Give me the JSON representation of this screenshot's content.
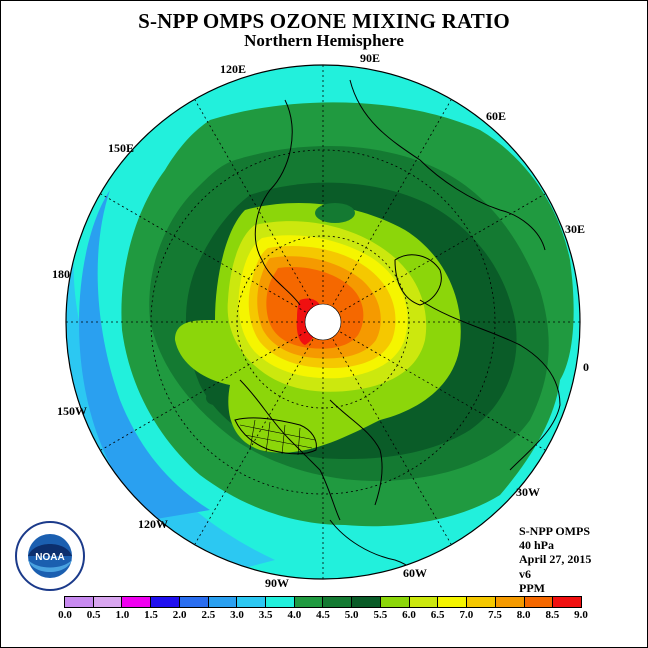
{
  "title": "S-NPP OMPS OZONE MIXING RATIO",
  "subtitle": "Northern Hemisphere",
  "info": {
    "instrument": "S-NPP OMPS",
    "level": "40 hPa",
    "date": "April 27, 2015",
    "version": "v6",
    "units": "PPM"
  },
  "logo": {
    "text": "NOAA",
    "icon": "noaa-logo-icon"
  },
  "longitude_labels": [
    "90E",
    "60E",
    "30E",
    "0",
    "30W",
    "60W",
    "90W",
    "120W",
    "150W",
    "180",
    "150E",
    "120E"
  ],
  "colorbar": {
    "ticks": [
      "0.0",
      "0.5",
      "1.0",
      "1.5",
      "2.0",
      "2.5",
      "3.0",
      "3.5",
      "4.0",
      "4.5",
      "5.0",
      "5.5",
      "6.0",
      "6.5",
      "7.0",
      "7.5",
      "8.0",
      "8.5",
      "9.0"
    ],
    "colors": [
      "#c88af0",
      "#d9a6f0",
      "#f000f0",
      "#2010f0",
      "#2a6ef0",
      "#2aa0f0",
      "#2cc8f2",
      "#22f0dc",
      "#209a40",
      "#147a32",
      "#0a5c28",
      "#8cd60a",
      "#cce80e",
      "#f5f500",
      "#f5c800",
      "#f59a00",
      "#f56800",
      "#f01010",
      "#8c5a3c"
    ]
  }
}
